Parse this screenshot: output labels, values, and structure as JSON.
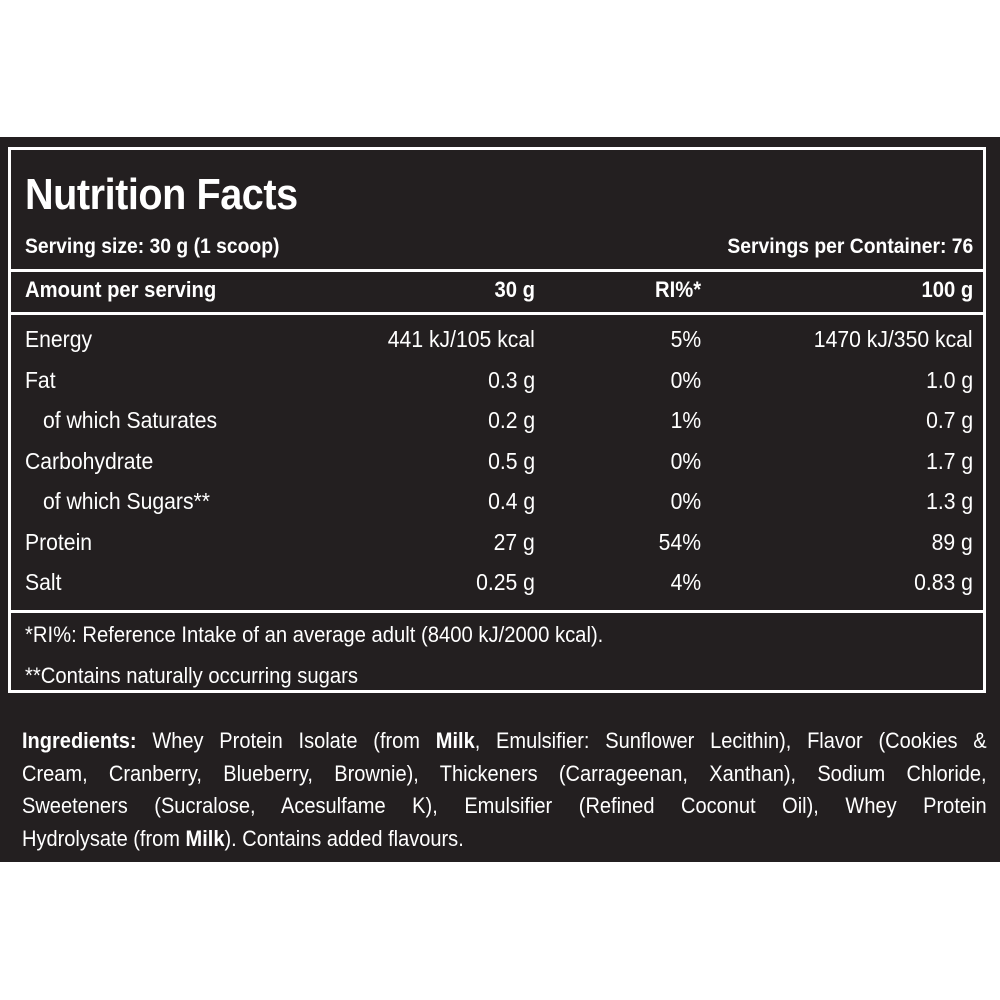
{
  "title": "Nutrition Facts",
  "serving_size": "Serving size: 30 g (1 scoop)",
  "servings_per_container": "Servings per Container: 76",
  "header": {
    "label": "Amount per serving",
    "col1": "30 g",
    "col2": "RI%*",
    "col3": "100 g"
  },
  "rows": [
    {
      "name": "Energy",
      "per_serving": "441 kJ/105 kcal",
      "ri": "5%",
      "per_100g": "1470 kJ/350 kcal"
    },
    {
      "name": "Fat",
      "per_serving": "0.3 g",
      "ri": "0%",
      "per_100g": "1.0 g"
    },
    {
      "name": "of which Saturates",
      "per_serving": "0.2 g",
      "ri": "1%",
      "per_100g": "0.7 g"
    },
    {
      "name": "Carbohydrate",
      "per_serving": "0.5 g",
      "ri": "0%",
      "per_100g": "1.7 g"
    },
    {
      "name": "of which Sugars**",
      "per_serving": "0.4 g",
      "ri": "0%",
      "per_100g": "1.3 g"
    },
    {
      "name": "Protein",
      "per_serving": "27 g",
      "ri": "54%",
      "per_100g": "89 g"
    },
    {
      "name": "Salt",
      "per_serving": "0.25 g",
      "ri": "4%",
      "per_100g": "0.83 g"
    }
  ],
  "footnotes": [
    "*RI%: Reference Intake of an average adult (8400 kJ/2000 kcal).",
    "**Contains naturally occurring sugars"
  ],
  "ingredients": {
    "label": "Ingredients:",
    "line1_a": " Whey Protein Isolate (from ",
    "milk1": "Milk",
    "line1_b": ", Emulsifier: Sunflower Lecithin), Flavor (Cookies &",
    "line2": "Cream, Cranberry, Blueberry, Brownie), Thickeners (Carrageenan, Xanthan), Sodium Chloride,",
    "line3": "Sweeteners (Sucralose, Acesulfame K), Emulsifier (Refined Coconut Oil), Whey Protein",
    "line4_a": "Hydrolysate (from ",
    "milk2": "Milk",
    "line4_b": "). Contains added flavours."
  }
}
